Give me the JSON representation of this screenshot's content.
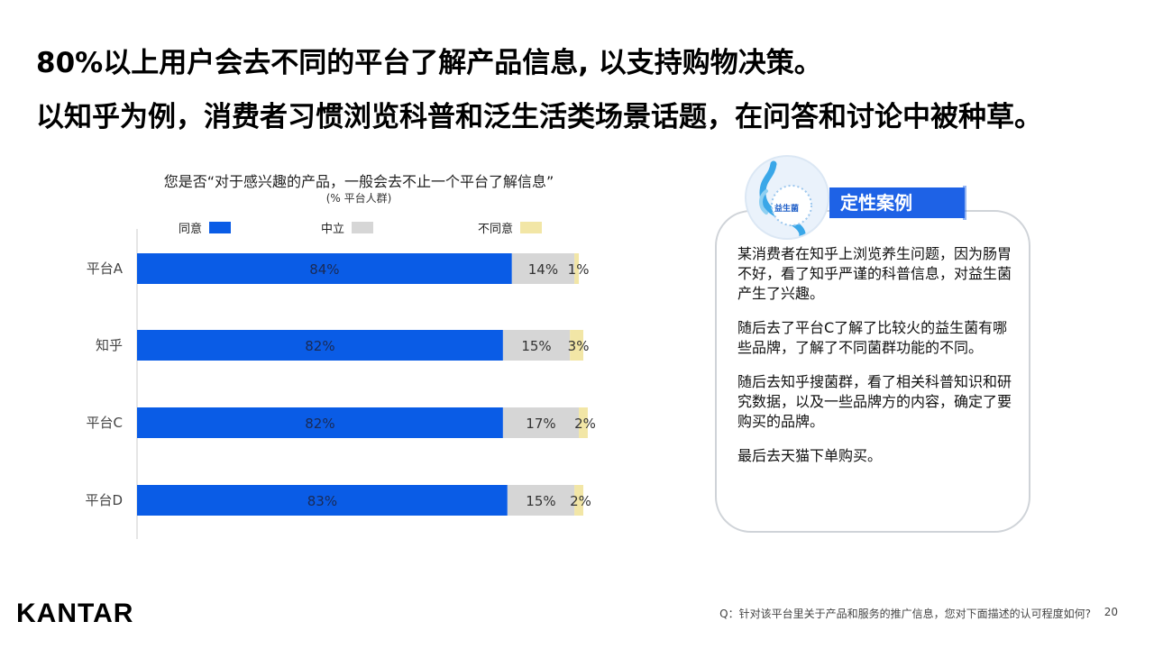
{
  "headlines": {
    "line1": "80%以上用户会去不同的平台了解产品信息, 以支持购物决策。",
    "line2": "以知乎为例，消费者习惯浏览科普和泛生活类场景话题，在问答和讨论中被种草。"
  },
  "chart_data": {
    "type": "bar",
    "orientation": "horizontal",
    "stacked": true,
    "title": "您是否“对于感兴趣的产品，一般会去不止一个平台了解信息”",
    "subtitle": "(% 平台人群)",
    "categories": [
      "平台A",
      "知乎",
      "平台C",
      "平台D"
    ],
    "series": [
      {
        "name": "同意",
        "color": "#0a5ce6",
        "values": [
          84,
          82,
          82,
          83
        ],
        "labels": [
          "84%",
          "82%",
          "82%",
          "83%"
        ]
      },
      {
        "name": "中立",
        "color": "#d6d6d6",
        "values": [
          14,
          15,
          17,
          15
        ],
        "labels": [
          "14%",
          "15%",
          "17%",
          "15%"
        ]
      },
      {
        "name": "不同意",
        "color": "#f2e6a6",
        "values": [
          1,
          3,
          2,
          2
        ],
        "labels": [
          "1%",
          "3%",
          "2%",
          "2%"
        ]
      }
    ],
    "xlim": [
      0,
      100
    ],
    "legend_position": "top"
  },
  "case": {
    "banner": "定性案例",
    "icon_label": "益生菌",
    "paragraphs": [
      "某消费者在知乎上浏览养生问题，因为肠胃不好，看了知乎严谨的科普信息，对益生菌产生了兴趣。",
      "随后去了平台C了解了比较火的益生菌有哪些品牌，了解了不同菌群功能的不同。",
      "随后去知乎搜菌群，看了相关科普知识和研究数据，以及一些品牌方的内容，确定了要购买的品牌。",
      "最后去天猫下单购买。"
    ]
  },
  "footer": {
    "logo": "KANTAR",
    "question": "Q：针对该平台里关于产品和服务的推广信息，您对下面描述的认可程度如何?",
    "page": "20"
  }
}
